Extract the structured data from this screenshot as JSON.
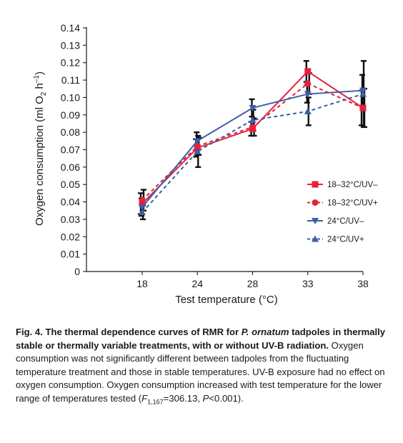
{
  "chart_data": {
    "type": "line",
    "xlabel": "Test temperature (°C)",
    "ylabel_text": "Oxygen consumption (ml O",
    "ylabel_sub": "2",
    "ylabel_mid": " h",
    "ylabel_sup": "–1",
    "ylabel_end": ")",
    "categories": [
      "18",
      "24",
      "28",
      "33",
      "38"
    ],
    "ylim": [
      0,
      0.14
    ],
    "yticks": [
      "0",
      "0.01",
      "0.02",
      "0.03",
      "0.04",
      "0.05",
      "0.06",
      "0.07",
      "0.08",
      "0.09",
      "0.10",
      "0.11",
      "0.12",
      "0.13",
      "0.14"
    ],
    "legend_position": "right-middle",
    "grid": false,
    "series": [
      {
        "name": "18–32°C/UV–",
        "color": "#e8203a",
        "dash": false,
        "marker": "square",
        "values": [
          0.039,
          0.071,
          0.082,
          0.115,
          0.094
        ],
        "err": [
          0.006,
          0.005,
          0.004,
          0.006,
          0.01
        ]
      },
      {
        "name": "18–32°C/UV+",
        "color": "#e8203a",
        "dash": true,
        "marker": "circle",
        "values": [
          0.041,
          0.072,
          0.083,
          0.108,
          0.094
        ],
        "err": [
          0.006,
          0.005,
          0.005,
          0.006,
          0.011
        ]
      },
      {
        "name": "24°C/UV–",
        "color": "#3c5ea8",
        "dash": false,
        "marker": "triangle-down",
        "values": [
          0.037,
          0.075,
          0.094,
          0.102,
          0.104
        ],
        "err": [
          0.005,
          0.005,
          0.005,
          0.005,
          0.009
        ]
      },
      {
        "name": "24°C/UV+",
        "color": "#3c5ea8",
        "dash": true,
        "marker": "triangle-up",
        "values": [
          0.034,
          0.069,
          0.087,
          0.092,
          0.102
        ],
        "err": [
          0.004,
          0.009,
          0.006,
          0.008,
          0.019
        ]
      }
    ]
  },
  "caption": {
    "bold_1": "Fig. 4. The thermal dependence curves of RMR for ",
    "bold_italic": "P. ornatum",
    "bold_2": " tadpoles in thermally stable or thermally variable treatments, with or without UV-B radiation.",
    "body_1": " Oxygen consumption was not significantly different between tadpoles from the fluctuating temperature treatment and those in stable temperatures. UV-B exposure had no effect on oxygen consumption. Oxygen consumption increased with test temperature for the lower range of temperatures tested (",
    "stat_F": "F",
    "stat_sub": "1,167",
    "body_2": "=306.13, ",
    "stat_P": "P",
    "body_3": "<0.001)."
  }
}
